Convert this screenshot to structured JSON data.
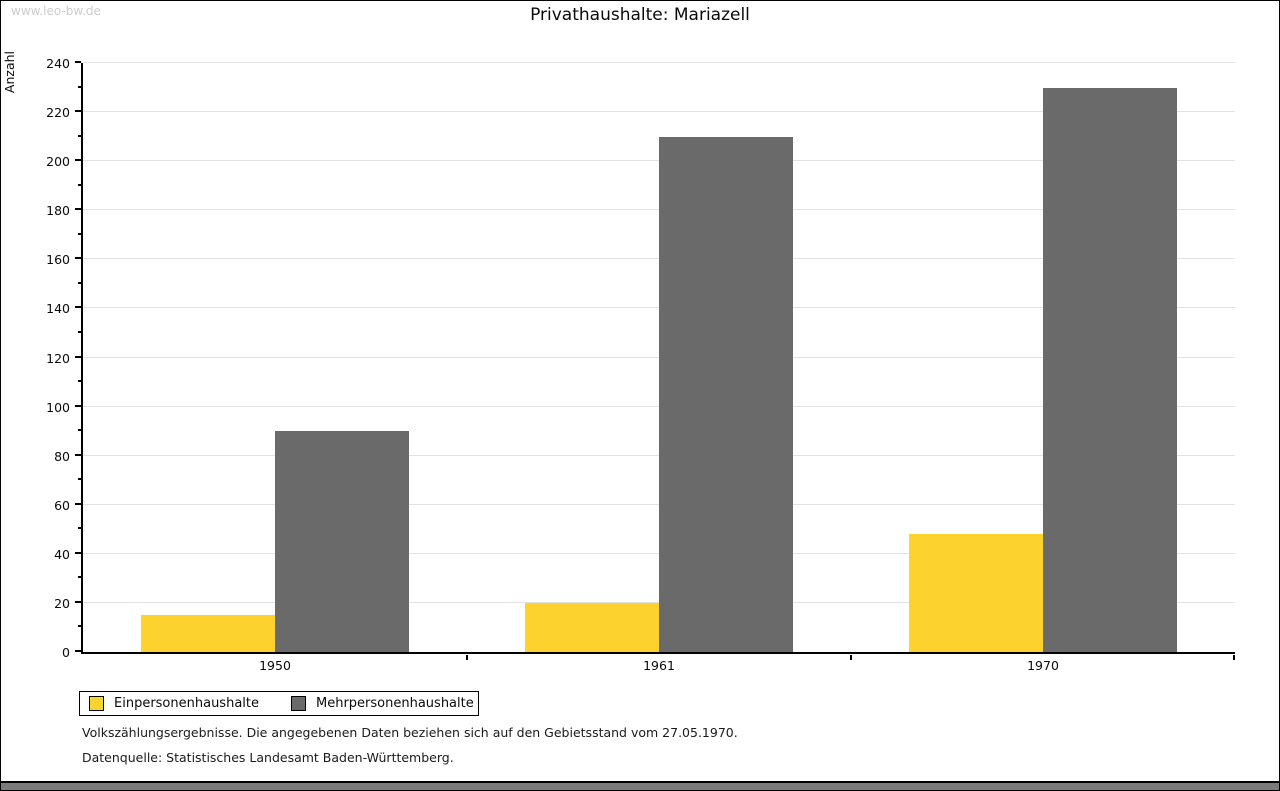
{
  "page": {
    "watermark": "www.leo-bw.de"
  },
  "chart_data": {
    "type": "bar",
    "title": "Privathaushalte: Mariazell",
    "xlabel": "",
    "ylabel": "Anzahl",
    "categories": [
      "1950",
      "1961",
      "1970"
    ],
    "series": [
      {
        "name": "Einpersonenhaushalte",
        "color": "#FCD32E",
        "values": [
          15,
          20,
          48
        ]
      },
      {
        "name": "Mehrpersonenhaushalte",
        "color": "#6A6A6A",
        "values": [
          90,
          210,
          230
        ]
      }
    ],
    "ylim": [
      0,
      240
    ],
    "ytick_step": 20,
    "minor_tick_step": 10,
    "grid": true,
    "gridline_color": "#e2e2e2",
    "legend_position": "bottom-left"
  },
  "footer": {
    "line1": "Volkszählungsergebnisse. Die angegebenen Daten beziehen sich auf den Gebietsstand vom 27.05.1970.",
    "line2": "Datenquelle: Statistisches Landesamt Baden-Württemberg."
  }
}
